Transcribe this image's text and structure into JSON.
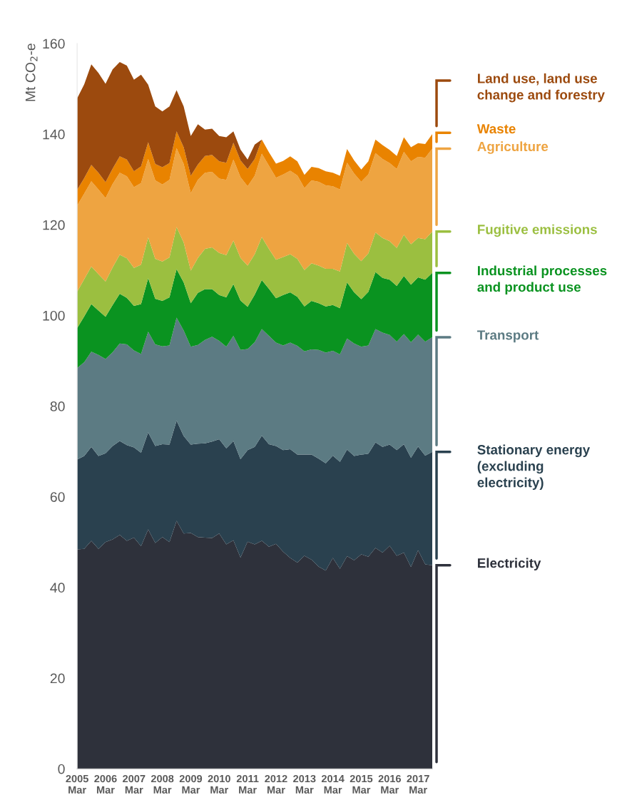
{
  "chart_data": {
    "type": "area",
    "stacked": true,
    "ylabel": "Mt CO$_{2}$-e",
    "categories": [
      "2005\nMar",
      null,
      null,
      null,
      "2006\nMar",
      null,
      null,
      null,
      "2007\nMar",
      null,
      null,
      null,
      "2008\nMar",
      null,
      null,
      null,
      "2009\nMar",
      null,
      null,
      null,
      "2010\nMar",
      null,
      null,
      null,
      "2011\nMar",
      null,
      null,
      null,
      "2012\nMar",
      null,
      null,
      null,
      "2013\nMar",
      null,
      null,
      null,
      "2014\nMar",
      null,
      null,
      null,
      "2015\nMar",
      null,
      null,
      null,
      "2016\nMar",
      null,
      null,
      null,
      "2017\nMar",
      null,
      null
    ],
    "ylim": [
      0,
      160
    ],
    "yticks": [
      0,
      20,
      40,
      60,
      80,
      100,
      120,
      140,
      160
    ],
    "grid": false,
    "legend": "right",
    "series": [
      {
        "name": "Electricity",
        "color": "#2e313b",
        "values": [
          48.4,
          48.5,
          50.3,
          48.5,
          50.0,
          50.6,
          51.6,
          50.3,
          51.0,
          49.1,
          52.8,
          49.8,
          51.1,
          50.0,
          54.7,
          51.9,
          52.0,
          51.1,
          51.0,
          50.9,
          51.9,
          49.5,
          50.4,
          46.6,
          50.1,
          49.5,
          50.3,
          49.0,
          49.6,
          47.9,
          46.5,
          45.5,
          47.0,
          46.1,
          44.6,
          43.7,
          46.5,
          44.1,
          46.9,
          46.0,
          47.3,
          46.8,
          48.7,
          47.7,
          49.2,
          47.0,
          47.7,
          44.5,
          48.2,
          45.1,
          44.9
        ]
      },
      {
        "name": "Stationary energy\n(excluding\nelectricity)",
        "color": "#2a414f",
        "values": [
          19.8,
          20.5,
          20.7,
          20.5,
          19.6,
          20.6,
          20.7,
          21.1,
          19.9,
          20.6,
          21.4,
          21.4,
          20.5,
          21.5,
          22.1,
          21.5,
          19.5,
          20.6,
          20.8,
          21.3,
          20.8,
          21.2,
          21.9,
          21.7,
          20.2,
          21.5,
          23.2,
          22.6,
          21.6,
          22.4,
          24.0,
          23.8,
          22.3,
          23.2,
          23.8,
          23.7,
          22.6,
          23.6,
          23.5,
          23.0,
          22.0,
          22.7,
          23.3,
          23.3,
          22.3,
          23.3,
          23.9,
          24.1,
          22.9,
          24.0,
          25.0
        ]
      },
      {
        "name": "Transport",
        "color": "#5c7b83",
        "values": [
          20.2,
          20.7,
          21.0,
          22.3,
          20.8,
          20.7,
          21.5,
          22.2,
          21.4,
          21.8,
          22.2,
          22.4,
          21.6,
          21.9,
          22.7,
          23.3,
          21.6,
          21.8,
          22.8,
          23.1,
          21.7,
          22.4,
          23.2,
          24.1,
          22.3,
          23.1,
          23.5,
          23.9,
          22.8,
          23.1,
          23.5,
          24.0,
          22.8,
          23.2,
          24.0,
          24.4,
          23.1,
          23.7,
          24.5,
          24.8,
          23.8,
          23.9,
          25.0,
          25.2,
          24.2,
          23.9,
          24.3,
          25.5,
          24.7,
          25.1,
          25.3
        ]
      },
      {
        "name": "Industrial processes\nand product use",
        "color": "#0a9320",
        "values": [
          8.8,
          10.1,
          10.5,
          9.8,
          9.3,
          10.4,
          11.0,
          10.3,
          9.8,
          11.0,
          11.8,
          10.1,
          10.0,
          10.6,
          10.7,
          10.6,
          9.6,
          11.5,
          11.2,
          10.5,
          10.1,
          10.9,
          11.4,
          10.9,
          9.3,
          10.5,
          10.8,
          10.4,
          9.8,
          11.1,
          11.1,
          10.8,
          9.9,
          10.7,
          10.3,
          10.2,
          10.1,
          10.2,
          12.4,
          11.3,
          10.5,
          11.8,
          12.6,
          12.1,
          12.2,
          12.3,
          12.8,
          12.7,
          12.6,
          13.7,
          14.2
        ]
      },
      {
        "name": "Fugitive emissions",
        "color": "#9bbf40",
        "values": [
          8.0,
          8.2,
          8.3,
          8.0,
          7.8,
          8.3,
          8.6,
          8.7,
          8.4,
          8.7,
          9.0,
          8.8,
          8.7,
          8.8,
          9.3,
          8.8,
          7.2,
          7.7,
          8.9,
          9.2,
          9.3,
          9.3,
          9.6,
          9.4,
          9.1,
          8.9,
          9.5,
          8.8,
          8.5,
          8.4,
          8.4,
          8.4,
          8.0,
          8.3,
          8.3,
          8.3,
          8.0,
          8.1,
          8.7,
          8.5,
          8.4,
          8.5,
          8.7,
          8.8,
          8.5,
          8.4,
          9.1,
          8.9,
          8.7,
          8.9,
          9.1
        ]
      },
      {
        "name": "Agriculture",
        "color": "#eea441",
        "values": [
          19.0,
          18.9,
          18.8,
          18.7,
          18.4,
          18.4,
          18.1,
          18.1,
          17.8,
          18.0,
          17.3,
          17.3,
          17.0,
          17.1,
          17.4,
          17.3,
          17.1,
          17.2,
          16.8,
          16.7,
          16.4,
          16.6,
          17.9,
          17.8,
          17.5,
          17.3,
          18.4,
          18.3,
          18.1,
          18.2,
          18.4,
          18.4,
          18.1,
          18.3,
          18.5,
          18.4,
          18.2,
          18.1,
          17.7,
          17.7,
          17.5,
          17.4,
          17.5,
          17.4,
          17.2,
          17.4,
          18.3,
          18.3,
          17.9,
          18.0,
          18.3
        ]
      },
      {
        "name": "Waste",
        "color": "#e98300",
        "values": [
          3.5,
          3.4,
          3.6,
          3.7,
          3.5,
          3.4,
          3.6,
          3.7,
          3.5,
          3.7,
          3.7,
          3.6,
          3.8,
          3.7,
          3.7,
          3.7,
          3.8,
          3.4,
          3.7,
          3.7,
          3.8,
          3.8,
          3.7,
          3.7,
          3.8,
          3.7,
          3.1,
          3.0,
          3.1,
          3.0,
          3.2,
          3.1,
          2.9,
          3.0,
          3.0,
          3.1,
          3.0,
          3.0,
          3.0,
          2.9,
          2.7,
          2.9,
          3.0,
          3.1,
          2.9,
          2.9,
          3.2,
          3.1,
          3.0,
          3.0,
          3.2
        ]
      },
      {
        "name": "Land use, land use\nchange and forestry",
        "color": "#9c4a0e",
        "values": [
          20.2,
          20.7,
          22.2,
          22.0,
          21.7,
          21.9,
          20.8,
          20.7,
          20.2,
          20.2,
          12.7,
          12.7,
          12.3,
          12.5,
          9.1,
          9.0,
          8.8,
          8.9,
          5.8,
          5.8,
          5.6,
          5.6,
          2.5,
          2.4,
          2.1,
          3.2,
          0,
          0,
          0,
          0,
          0,
          0,
          0,
          0,
          0,
          0,
          0,
          0,
          0,
          0,
          0,
          0,
          0,
          0,
          0,
          0,
          0,
          0,
          0,
          0,
          0
        ]
      }
    ]
  }
}
